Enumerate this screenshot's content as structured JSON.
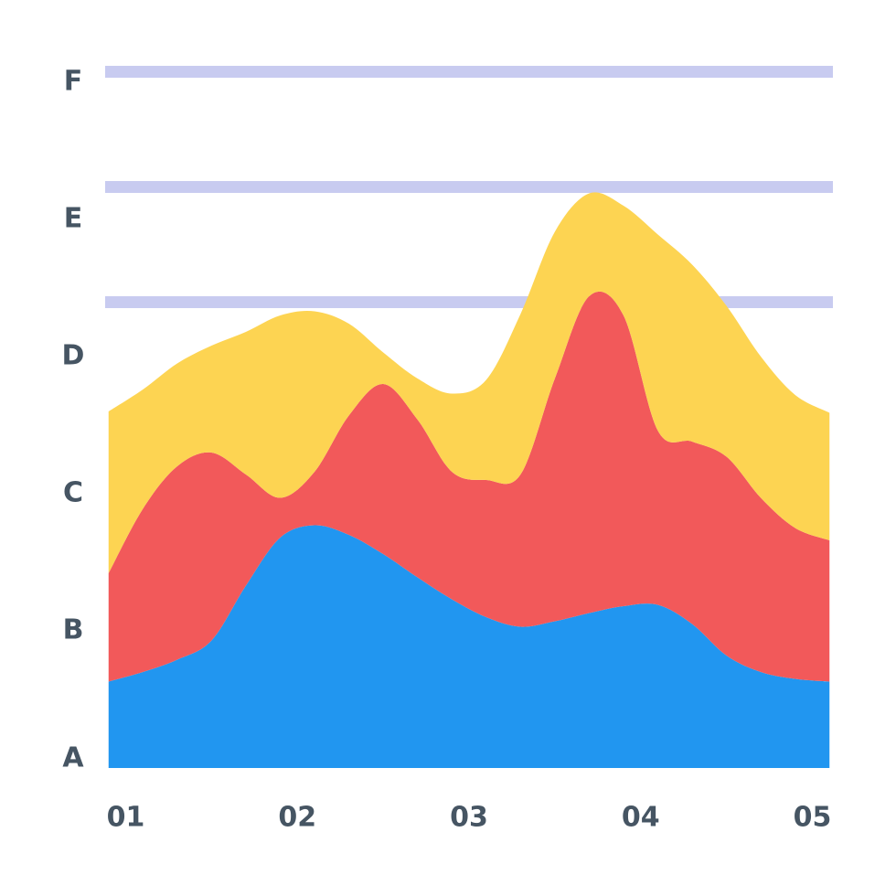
{
  "chart_data": {
    "type": "stacked_area",
    "x": [
      0.9,
      1.1,
      1.3,
      1.5,
      1.7,
      1.9,
      2.1,
      2.3,
      2.5,
      2.7,
      2.9,
      3.1,
      3.3,
      3.5,
      3.7,
      3.9,
      4.1,
      4.3,
      4.5,
      4.7,
      4.9,
      5.1
    ],
    "series": [
      {
        "color": "#2196f0",
        "values": [
          0.63,
          0.7,
          0.79,
          0.93,
          1.33,
          1.68,
          1.77,
          1.7,
          1.56,
          1.39,
          1.23,
          1.1,
          1.03,
          1.07,
          1.13,
          1.18,
          1.19,
          1.05,
          0.82,
          0.7,
          0.65,
          0.63
        ]
      },
      {
        "color": "#f2595a",
        "values": [
          0.79,
          1.19,
          1.41,
          1.37,
          0.81,
          0.29,
          0.39,
          0.87,
          1.24,
          1.15,
          0.93,
          1.0,
          1.11,
          1.77,
          2.31,
          2.12,
          1.27,
          1.33,
          1.45,
          1.27,
          1.1,
          1.03
        ]
      },
      {
        "color": "#fdd452",
        "values": [
          1.18,
          0.87,
          0.75,
          0.78,
          1.04,
          1.33,
          1.17,
          0.67,
          0.23,
          0.3,
          0.57,
          0.73,
          1.17,
          1.07,
          0.75,
          0.8,
          1.43,
          1.29,
          1.1,
          1.03,
          0.97,
          0.93
        ]
      }
    ],
    "xlim": [
      0.88,
      5.12
    ],
    "xticks": [
      {
        "value": 1,
        "label": "01"
      },
      {
        "value": 2,
        "label": "02"
      },
      {
        "value": 3,
        "label": "03"
      },
      {
        "value": 4,
        "label": "04"
      },
      {
        "value": 5,
        "label": "05"
      }
    ],
    "ylim": [
      0,
      5.1
    ],
    "yticks": [
      {
        "value": 0,
        "label": "A"
      },
      {
        "value": 1,
        "label": "B"
      },
      {
        "value": 2,
        "label": "C"
      },
      {
        "value": 3,
        "label": "D"
      },
      {
        "value": 4,
        "label": "E"
      },
      {
        "value": 5,
        "label": "F"
      }
    ]
  }
}
